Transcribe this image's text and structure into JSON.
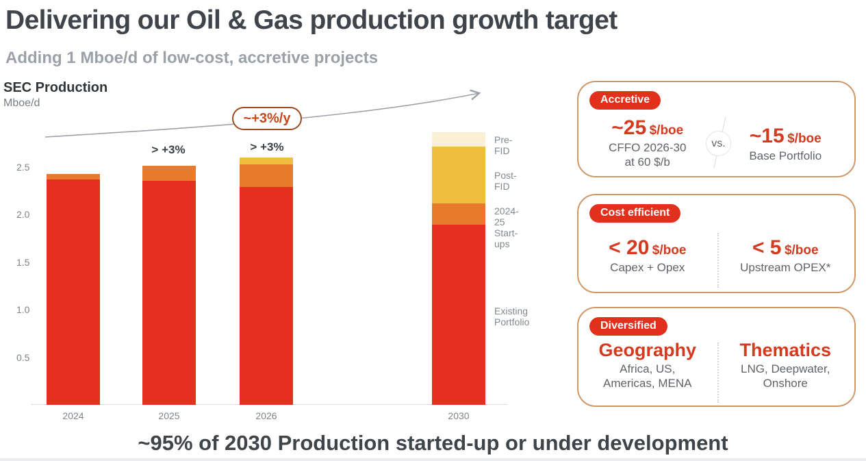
{
  "slide": {
    "title": "Delivering our Oil & Gas production growth target",
    "subtitle": "Adding 1 Mboe/d of low-cost, accretive projects",
    "footer": "~95% of 2030 Production started-up or under development"
  },
  "chart": {
    "title": "SEC Production",
    "unit_label": "Mboe/d",
    "ytick_labels": [
      "2.5",
      "2.0",
      "1.5",
      "1.0",
      "0.5"
    ],
    "trend_bubble": "~+3%/y",
    "growth_labels": [
      {
        "category": "2025",
        "text": "> +3%"
      },
      {
        "category": "2026",
        "text": "> +3%"
      }
    ],
    "legend": [
      {
        "lines": [
          "Pre-FID"
        ]
      },
      {
        "lines": [
          "Post-FID"
        ]
      },
      {
        "lines": [
          "2024-25",
          "Start-ups"
        ]
      },
      {
        "lines": [
          "Existing",
          "Portfolio"
        ]
      }
    ]
  },
  "chart_data": {
    "type": "bar",
    "stacked": true,
    "title": "SEC Production",
    "ylabel": "Mboe/d",
    "categories": [
      "2024",
      "2025",
      "2026",
      "2030"
    ],
    "series": [
      {
        "name": "Existing Portfolio",
        "color": "#E6301F",
        "values": [
          2.37,
          2.35,
          2.29,
          1.89
        ]
      },
      {
        "name": "2024-25 Start-ups",
        "color": "#E87A2E",
        "values": [
          0.06,
          0.16,
          0.24,
          0.22
        ]
      },
      {
        "name": "Post-FID",
        "color": "#EFBE41",
        "values": [
          0,
          0,
          0.07,
          0.6
        ]
      },
      {
        "name": "Pre-FID",
        "color": "#FAF0D5",
        "values": [
          0,
          0,
          0,
          0.15
        ]
      }
    ],
    "totals": [
      2.43,
      2.51,
      2.6,
      2.86
    ],
    "yticks": [
      0.5,
      1.0,
      1.5,
      2.0,
      2.5
    ],
    "ylim": [
      0,
      3.0
    ],
    "grid": false,
    "legend_position": "right",
    "annotations": [
      {
        "target": "2025",
        "text": "> +3%"
      },
      {
        "target": "2026",
        "text": "> +3%"
      },
      {
        "target": "trend-arrow",
        "text": "~+3%/y"
      }
    ]
  },
  "cards": [
    {
      "badge": "Accretive",
      "vs_label": "vs.",
      "left": {
        "value": "~25",
        "unit": "$/boe",
        "caption_line1": "CFFO 2026-30",
        "caption_line2": "at 60 $/b"
      },
      "right": {
        "value": "~15",
        "unit": "$/boe",
        "caption_line1": "Base Portfolio"
      }
    },
    {
      "badge": "Cost efficient",
      "left": {
        "value": "< 20",
        "unit": "$/boe",
        "caption_line1": "Capex + Opex"
      },
      "right": {
        "value": "< 5",
        "unit": "$/boe",
        "caption_line1": "Upstream OPEX*"
      }
    },
    {
      "badge": "Diversified",
      "left": {
        "value": "Geography",
        "caption_line1": "Africa, US,",
        "caption_line2": "Americas, MENA"
      },
      "right": {
        "value": "Thematics",
        "caption_line1": "LNG, Deepwater,",
        "caption_line2": "Onshore"
      }
    }
  ],
  "colors": {
    "brand_red": "#E1311C",
    "bar_red": "#E6301F",
    "bar_orange": "#E87A2E",
    "bar_gold": "#EFBE41",
    "bar_cream": "#FAF0D5",
    "card_border": "#CE9768",
    "value_red": "#D63A1E",
    "text_dark": "#3E444A",
    "text_gray": "#5F6368",
    "axis_gray": "#7D848A",
    "arrow_gray": "#9CA2A8"
  }
}
